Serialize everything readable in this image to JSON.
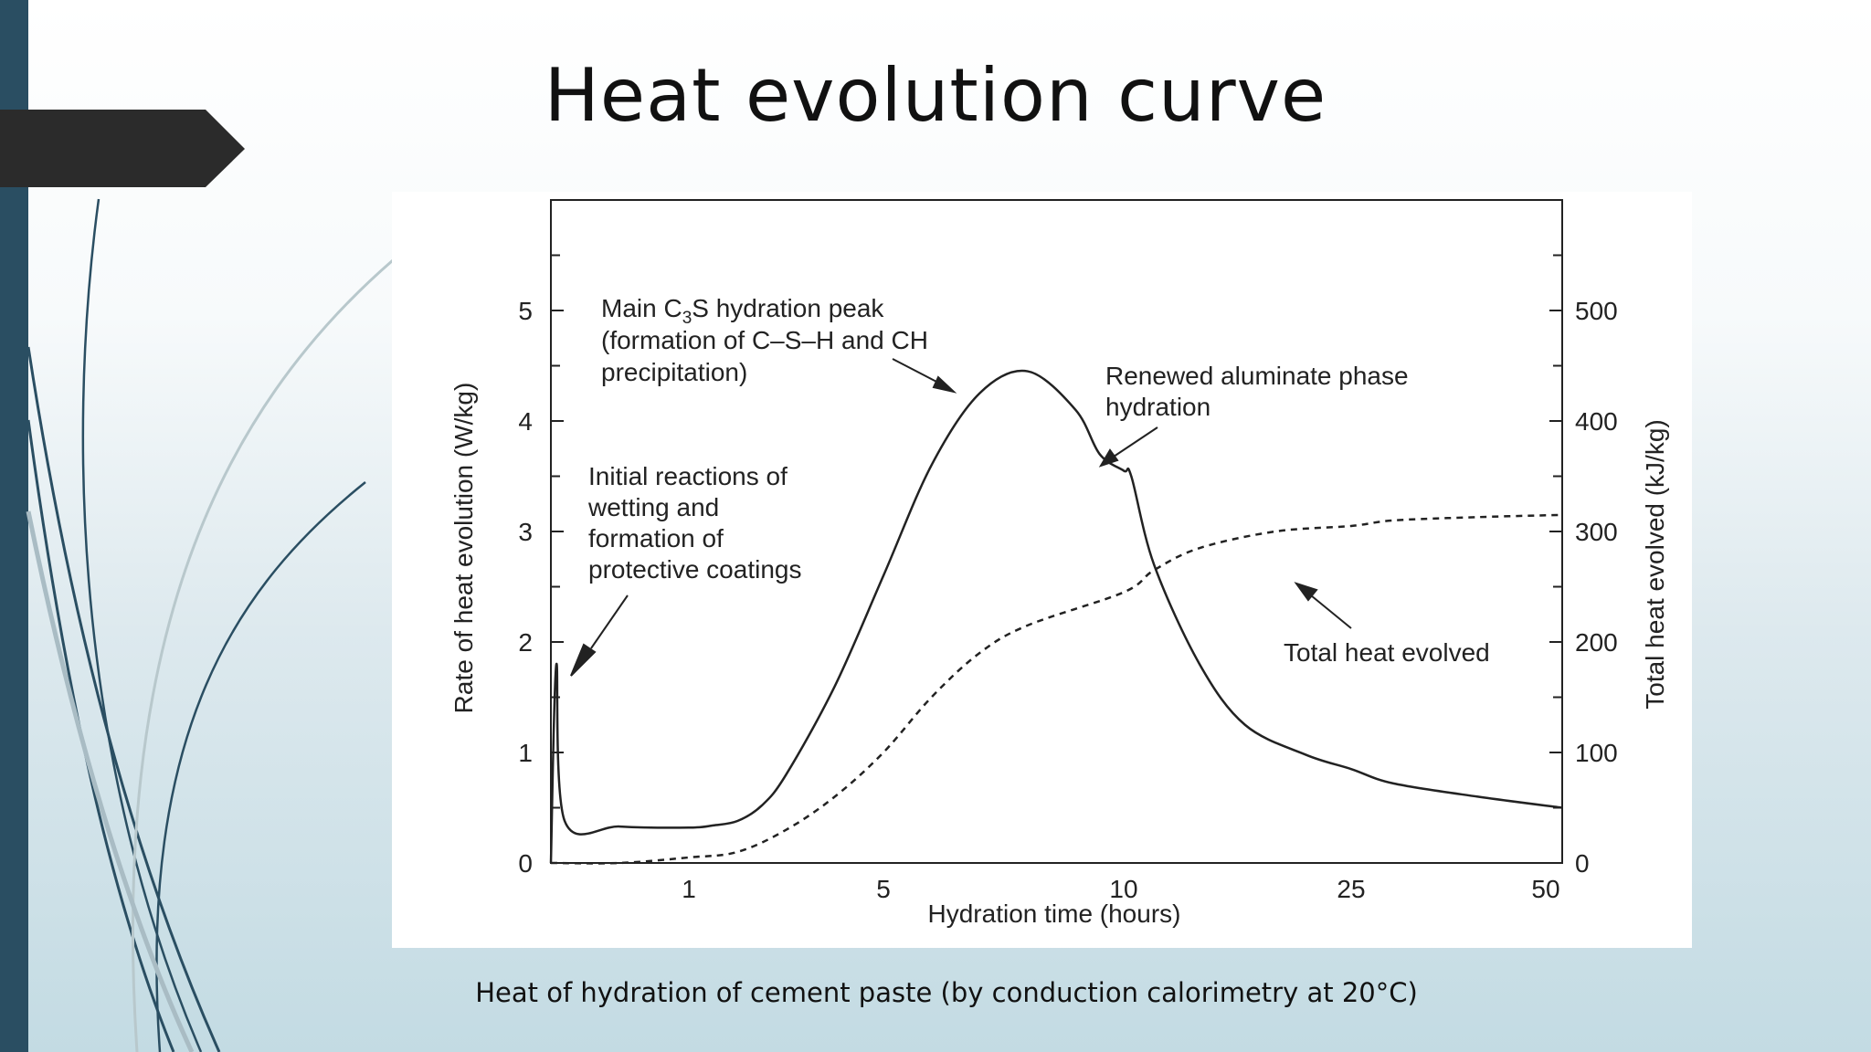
{
  "slide": {
    "title": "Heat evolution curve",
    "caption": "Heat of hydration of cement paste (by conduction calorimetry at 20°C)"
  },
  "theme": {
    "sidebar_color": "#2a4e62",
    "tab_color": "#2b2b2b",
    "curve_color": "#222222"
  },
  "chart_data": {
    "type": "line",
    "xlabel": "Hydration time (hours)",
    "ylabel": "Rate of heat evolution (W/kg)",
    "y2label": "Total heat evolved (kJ/kg)",
    "x_scale": "nonlinear (log-like)",
    "x_ticks": [
      "1",
      "5",
      "10",
      "25",
      "50"
    ],
    "ylim": [
      0,
      6
    ],
    "y_ticks": [
      "0",
      "1",
      "2",
      "3",
      "4",
      "5"
    ],
    "y2lim": [
      0,
      600
    ],
    "y2_ticks": [
      "0",
      "100",
      "200",
      "300",
      "400",
      "500"
    ],
    "grid": false,
    "series": [
      {
        "style": "solid",
        "axis": "left",
        "points": [
          [
            0,
            0
          ],
          [
            0.04,
            1.8
          ],
          [
            0.1,
            0.38
          ],
          [
            0.5,
            0.33
          ],
          [
            1.0,
            0.32
          ],
          [
            1.5,
            0.34
          ],
          [
            2.0,
            0.38
          ],
          [
            2.5,
            0.52
          ],
          [
            3,
            0.8
          ],
          [
            4,
            1.6
          ],
          [
            5,
            2.6
          ],
          [
            6,
            3.6
          ],
          [
            7,
            4.25
          ],
          [
            8,
            4.45
          ],
          [
            9,
            4.1
          ],
          [
            9.5,
            3.7
          ],
          [
            10,
            3.55
          ],
          [
            10.5,
            3.5
          ],
          [
            12,
            2.7
          ],
          [
            15,
            1.8
          ],
          [
            18,
            1.25
          ],
          [
            22,
            0.98
          ],
          [
            25,
            0.85
          ],
          [
            30,
            0.72
          ],
          [
            40,
            0.6
          ],
          [
            50,
            0.5
          ]
        ]
      },
      {
        "style": "dashed",
        "axis": "right",
        "points": [
          [
            0,
            0
          ],
          [
            0.5,
            0
          ],
          [
            1,
            5
          ],
          [
            2,
            10
          ],
          [
            3,
            30
          ],
          [
            4,
            60
          ],
          [
            5,
            100
          ],
          [
            6,
            150
          ],
          [
            7,
            190
          ],
          [
            8,
            215
          ],
          [
            10,
            245
          ],
          [
            12,
            265
          ],
          [
            15,
            285
          ],
          [
            20,
            300
          ],
          [
            25,
            305
          ],
          [
            30,
            310
          ],
          [
            40,
            313
          ],
          [
            50,
            315
          ]
        ]
      }
    ],
    "annotations": [
      {
        "id": "main",
        "lines": [
          "Main C3S hydration peak",
          "(formation of C–S–H and CH",
          "precipitation)"
        ]
      },
      {
        "id": "renewed",
        "lines": [
          "Renewed aluminate phase",
          "hydration"
        ]
      },
      {
        "id": "initial",
        "lines": [
          "Initial reactions of",
          "wetting and",
          "formation of",
          "protective coatings"
        ]
      },
      {
        "id": "total",
        "lines": [
          "Total heat evolved"
        ]
      }
    ]
  }
}
